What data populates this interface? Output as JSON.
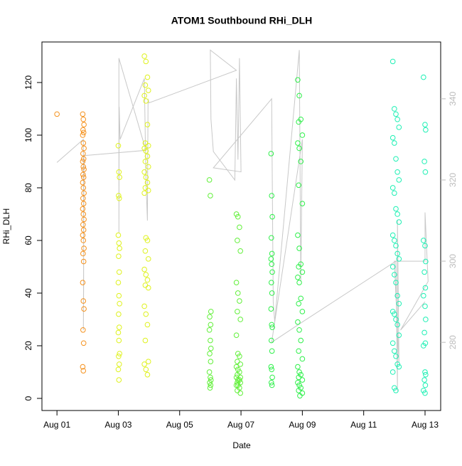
{
  "chart_data": {
    "type": "scatter",
    "title": "ATOM1 Southbound RHi_DLH",
    "xlabel": "Date",
    "ylabel": "RHi_DLH",
    "xlim": [
      0.51,
      13.51
    ],
    "ylim": [
      -4.6,
      135.4
    ],
    "y2lim": [
      263.2,
      354
    ],
    "xticks": [
      {
        "value": 1,
        "label": "Aug 01"
      },
      {
        "value": 3,
        "label": "Aug 03"
      },
      {
        "value": 5,
        "label": "Aug 05"
      },
      {
        "value": 7,
        "label": "Aug 07"
      },
      {
        "value": 9,
        "label": "Aug 09"
      },
      {
        "value": 11,
        "label": "Aug 11"
      },
      {
        "value": 13,
        "label": "Aug 13"
      }
    ],
    "yticks": [
      0,
      20,
      40,
      60,
      80,
      100,
      120
    ],
    "y2ticks": [
      280,
      300,
      320,
      340
    ],
    "series": [
      {
        "type": "line",
        "axis": "y2",
        "color": "#c8c8c8",
        "x": [
          1.0,
          1.86,
          1.87,
          1.86,
          1.88,
          3.9,
          3.02,
          3.02,
          3.03,
          3.06,
          3.85,
          3.9,
          3.95,
          3.97,
          4.0,
          6.85,
          6.0,
          6.02,
          6.1,
          6.8,
          6.85,
          6.9,
          6.95,
          7.0,
          6.1,
          8.0,
          8.05,
          8.1,
          8.9,
          8.95,
          9.0,
          8.0,
          9.0,
          12.05,
          12.1,
          12.1,
          12.15,
          12.0,
          13.0,
          13.0,
          13.1,
          12.2,
          13.0
        ],
        "values": [
          324.3,
          330,
          295,
          283,
          326,
          327.3,
          350,
          307,
          338,
          330,
          345,
          320,
          310,
          340,
          339,
          347,
          352,
          335,
          327,
          320,
          345,
          325,
          350,
          322,
          323,
          340,
          290,
          285,
          352,
          295,
          330,
          280,
          285,
          300,
          268,
          310,
          275,
          300,
          300,
          312,
          295,
          283,
          290
        ]
      },
      {
        "color": "#f5921e",
        "x": [
          1.0,
          1.84,
          1.86,
          1.88,
          1.85,
          1.87,
          1.84,
          1.86,
          1.88,
          1.85,
          1.87,
          1.84,
          1.86,
          1.88,
          1.85,
          1.87,
          1.84,
          1.86,
          1.88,
          1.85,
          1.87,
          1.84,
          1.86,
          1.88,
          1.85,
          1.87,
          1.84,
          1.86,
          1.88,
          1.85,
          1.87,
          1.84,
          1.86,
          1.88,
          1.85,
          1.87,
          1.84,
          1.86
        ],
        "values": [
          108,
          108,
          106,
          104,
          102,
          101,
          100,
          97,
          95,
          93,
          91,
          90,
          88,
          87,
          85,
          84,
          82,
          80,
          78,
          76,
          74,
          72,
          70,
          68,
          66,
          64,
          62,
          60,
          57,
          55,
          52,
          44,
          37,
          34,
          26,
          21,
          12,
          10.5
        ]
      },
      {
        "color": "#dff21e",
        "x": [
          3.0,
          3.02,
          3.04,
          3.01,
          3.03,
          3.0,
          3.02,
          3.04,
          3.01,
          3.03,
          3.0,
          3.02,
          3.04,
          3.01,
          3.03,
          3.0,
          3.02,
          3.04,
          3.01,
          3.03,
          3.0,
          3.02,
          3.85,
          3.9,
          3.95,
          3.88,
          3.98,
          3.85,
          3.9,
          3.95,
          3.88,
          3.98,
          3.85,
          3.9,
          3.95,
          3.88,
          3.98,
          3.85,
          3.9,
          3.95,
          3.88,
          3.98,
          3.85,
          3.9,
          3.95,
          3.88,
          3.98,
          3.85,
          3.9,
          3.95,
          3.88,
          3.98,
          3.85,
          3.9,
          3.95,
          3.88,
          3.98,
          3.85,
          3.9,
          3.95
        ],
        "values": [
          96,
          86,
          84,
          77,
          76,
          62,
          59,
          57,
          54,
          48,
          44,
          39,
          36,
          32,
          27,
          25,
          22,
          17,
          16,
          13,
          11,
          7,
          130,
          128,
          122,
          119,
          117,
          115,
          113,
          104,
          97,
          96,
          95,
          94,
          92,
          90,
          88,
          86,
          84,
          82,
          80,
          79,
          78,
          61,
          60,
          56,
          53,
          49,
          47,
          45,
          43,
          42,
          35,
          32,
          28,
          22,
          14,
          13,
          11,
          9
        ]
      },
      {
        "color": "#62f03a",
        "x": [
          5.97,
          6.0,
          6.02,
          5.98,
          6.01,
          5.97,
          6.0,
          6.02,
          5.98,
          6.01,
          5.97,
          6.0,
          6.02,
          5.98,
          6.01,
          5.99,
          6.85,
          6.9,
          6.95,
          6.88,
          6.98,
          6.85,
          6.9,
          6.95,
          6.88,
          6.98,
          6.85,
          6.9,
          6.95,
          6.88,
          6.98,
          6.85,
          6.9,
          6.95,
          6.88,
          6.98,
          6.85,
          6.9,
          6.95,
          6.88,
          6.98,
          6.85,
          6.9,
          6.95,
          6.88,
          6.98
        ],
        "values": [
          83,
          77,
          33,
          31,
          28,
          26,
          22,
          19,
          17,
          14,
          10,
          8,
          7,
          6,
          5,
          4,
          70,
          69,
          65,
          60,
          56,
          44,
          40,
          37,
          33,
          30,
          24,
          17,
          16,
          14,
          13,
          12,
          11,
          10,
          9,
          8,
          8,
          7,
          7,
          6,
          6,
          5,
          5,
          4,
          3,
          2
        ]
      },
      {
        "color": "#2ef04a",
        "x": [
          7.98,
          8.0,
          8.02,
          7.99,
          8.01,
          7.98,
          8.0,
          8.02,
          7.99,
          8.01,
          7.98,
          8.0,
          8.02,
          7.99,
          8.01,
          7.98,
          8.0,
          8.02,
          7.99,
          8.01,
          8.85,
          8.9,
          8.95,
          8.88,
          9.0,
          8.85,
          8.9,
          8.95,
          8.88,
          9.0,
          8.85,
          8.9,
          8.95,
          8.88,
          9.0,
          8.85,
          8.9,
          8.95,
          8.88,
          9.0,
          8.85,
          8.9,
          8.95,
          8.88,
          9.0,
          8.85,
          8.9,
          8.95,
          8.88,
          9.0,
          8.85,
          8.9,
          8.95,
          8.88,
          9.0,
          8.92
        ],
        "values": [
          93,
          77,
          69,
          61,
          55,
          53,
          51,
          48,
          44,
          40,
          34,
          28,
          27,
          22,
          18,
          12,
          11,
          8,
          6,
          5,
          121,
          115,
          106,
          105,
          100,
          97,
          95,
          90,
          81,
          74,
          62,
          57,
          51,
          50,
          48,
          46,
          44,
          38,
          36,
          33,
          29,
          26,
          22,
          18,
          15,
          12,
          10,
          9,
          8,
          7,
          6,
          5,
          4,
          3,
          2,
          1
        ]
      },
      {
        "color": "#1ef0b4",
        "x": [
          11.95,
          12.0,
          12.05,
          12.1,
          12.15,
          11.95,
          12.0,
          12.05,
          12.1,
          12.15,
          11.95,
          12.0,
          12.05,
          12.1,
          12.15,
          11.95,
          12.0,
          12.05,
          12.1,
          12.15,
          11.95,
          12.0,
          12.05,
          12.1,
          12.15,
          11.95,
          12.0,
          12.05,
          12.1,
          12.15,
          11.95,
          12.0,
          12.05,
          12.1,
          12.15,
          11.95,
          12.0,
          12.05,
          12.95,
          13.0,
          13.02,
          12.98,
          13.01,
          12.95,
          13.0,
          13.02,
          12.98,
          13.01,
          12.95,
          13.0,
          13.02,
          12.98,
          13.01,
          12.95,
          13.0,
          13.02,
          12.98,
          13.01,
          12.95,
          13.0
        ],
        "values": [
          128,
          110,
          108,
          106,
          103,
          99,
          97,
          91,
          86,
          83,
          80,
          78,
          72,
          70,
          67,
          62,
          60,
          58,
          55,
          53,
          50,
          47,
          44,
          39,
          36,
          33,
          32,
          30,
          28,
          24,
          21,
          18,
          16,
          13,
          12,
          10,
          4,
          3,
          122,
          104,
          102,
          90,
          86,
          60,
          58,
          52,
          48,
          42,
          39,
          35,
          30,
          25,
          21,
          20,
          10,
          9,
          7,
          5,
          3,
          2
        ]
      }
    ]
  }
}
